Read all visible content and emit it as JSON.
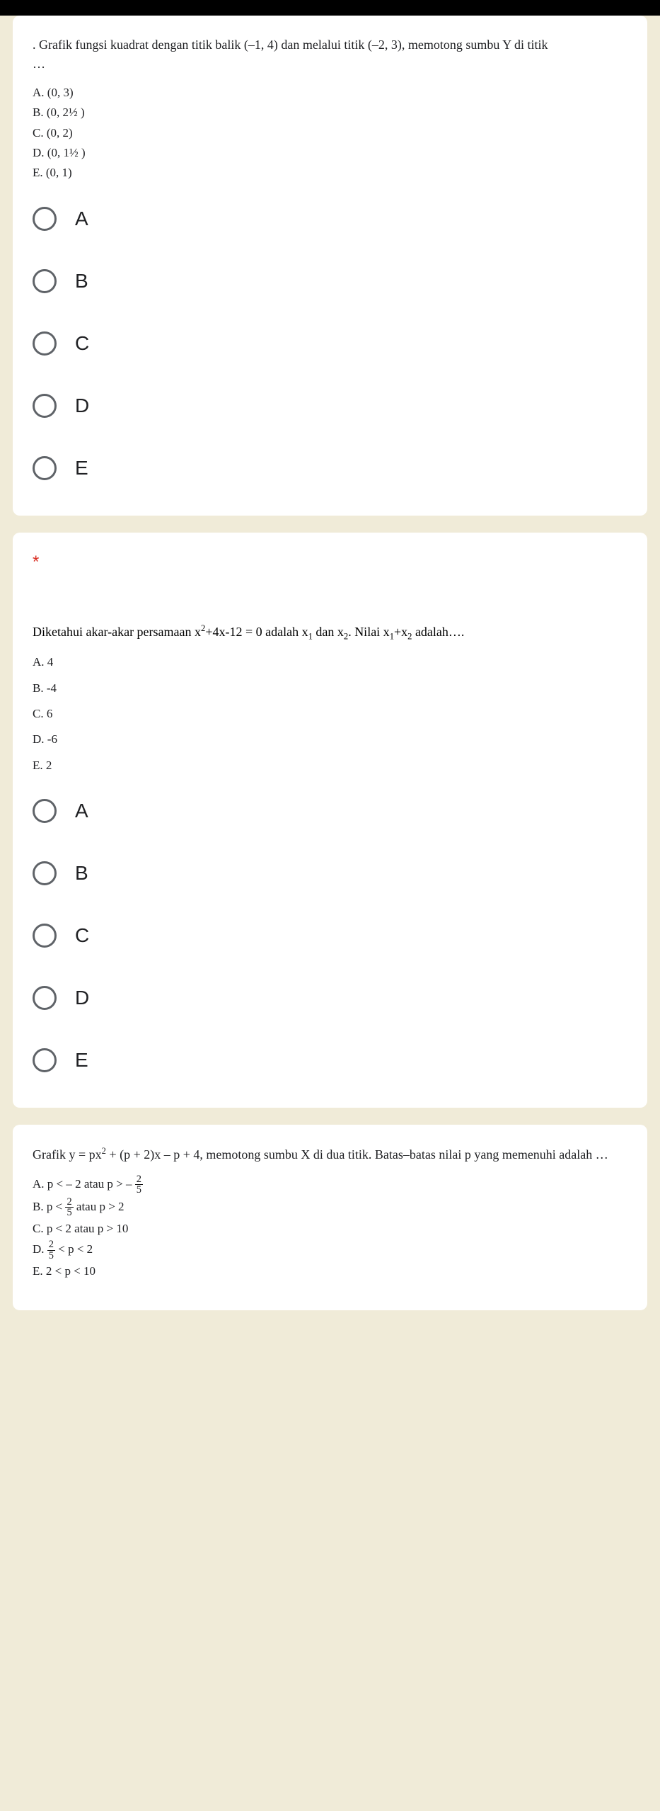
{
  "question1": {
    "leading": ".",
    "prompt_a": "Grafik fungsi kuadrat dengan titik balik (–1, 4) dan melalui titik (–2, 3), memotong sumbu Y di titik",
    "dots": "…",
    "choices": {
      "A": "A.  (0, 3)",
      "B": "B.  (0, 2½ )",
      "C": "C.  (0, 2)",
      "D": "D.  (0, 1½ )",
      "E": "E.  (0, 1)"
    },
    "radios": [
      "A",
      "B",
      "C",
      "D",
      "E"
    ]
  },
  "question2": {
    "required_mark": "*",
    "prompt_a": "Diketahui akar-akar persamaan x",
    "prompt_b": "+4x-12 = 0 adalah x",
    "prompt_c": " dan x",
    "prompt_d": ". Nilai x",
    "prompt_e": "+x",
    "prompt_f": " adalah….",
    "choices": {
      "A": "A. 4",
      "B": "B. -4",
      "C": "C. 6",
      "D": "D. -6",
      "E": "E. 2"
    },
    "radios": [
      "A",
      "B",
      "C",
      "D",
      "E"
    ]
  },
  "question3": {
    "prompt_a": "Grafik y = px",
    "prompt_b": " + (p + 2)x – p + 4, memotong sumbu X di dua titik. Batas–batas nilai p yang memenuhi adalah …",
    "choices": {
      "A_pre": "A. p < – 2 atau p >  – ",
      "A_frac_num": "2",
      "A_frac_den": "5",
      "B_pre": "B. p < ",
      "B_frac_num": "2",
      "B_frac_den": "5",
      "B_post": "  atau p > 2",
      "C": "C. p < 2 atau p > 10",
      "D_pre": "D. ",
      "D_frac_num": "2",
      "D_frac_den": "5",
      "D_post": " < p < 2",
      "E": "E.  2 < p < 10"
    }
  }
}
